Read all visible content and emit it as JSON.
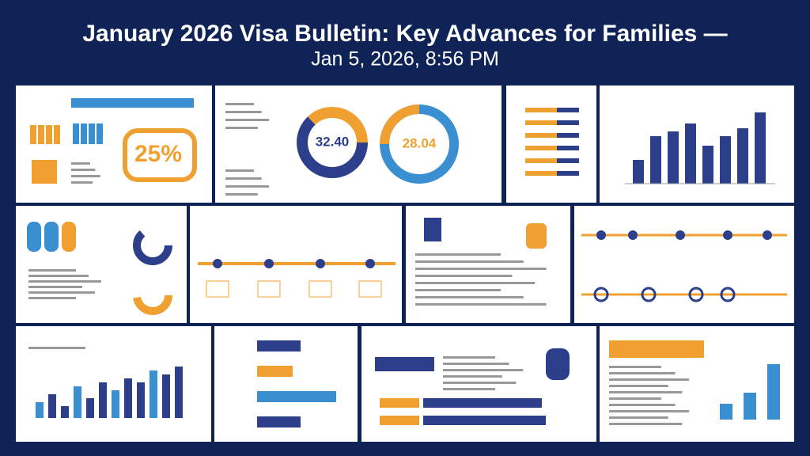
{
  "header": {
    "title": "January 2026 Visa Bulletin: Key Advances for Families —",
    "subtitle": "Jan 5, 2026, 8:56 PM"
  },
  "panels": {
    "highlight": "25%",
    "donut_left": "32.40",
    "donut_right": "28.04"
  }
}
